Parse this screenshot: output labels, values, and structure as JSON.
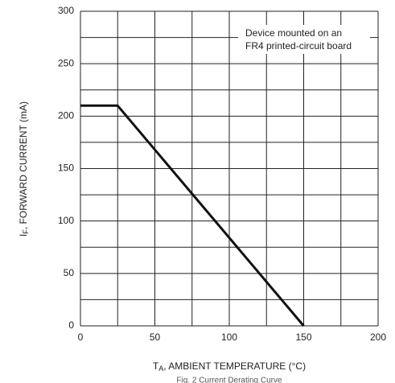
{
  "chart_data": {
    "type": "line",
    "x": [
      0,
      25,
      150
    ],
    "series": [
      {
        "values": [
          210,
          210,
          0
        ],
        "color": "#111111"
      }
    ],
    "xlim": [
      0,
      200
    ],
    "ylim": [
      0,
      300
    ],
    "xticks": [
      0,
      50,
      100,
      150,
      200
    ],
    "yticks": [
      0,
      50,
      100,
      150,
      200,
      250,
      300
    ],
    "xgrid": [
      0,
      25,
      50,
      75,
      100,
      125,
      150,
      175,
      200
    ],
    "ygrid": [
      0,
      25,
      50,
      75,
      100,
      125,
      150,
      175,
      200,
      225,
      250,
      275,
      300
    ],
    "xlabel": {
      "main": "T",
      "sub": "A",
      "rest": ", AMBIENT TEMPERATURE (°C)"
    },
    "ylabel": {
      "main": "I",
      "sub": "F",
      "rest": ", FORWARD CURRENT (mA)"
    },
    "annotation": [
      "Device mounted on an",
      "FR4 printed-circuit board"
    ],
    "caption": "Fig. 2 Current Derating Curve"
  }
}
